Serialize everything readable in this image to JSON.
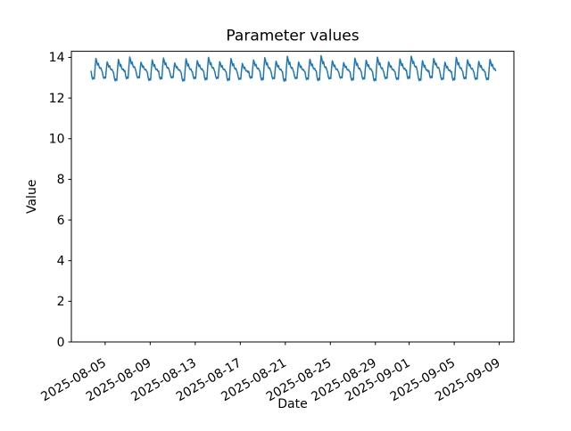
{
  "figure": {
    "background": "#ffffff",
    "text_color": "#000000"
  },
  "chart_data": {
    "type": "line",
    "title": "Parameter values",
    "xlabel": "Date",
    "ylabel": "Value",
    "grid": false,
    "legend": false,
    "line_color": "#1f77b4",
    "line_width": 1.5,
    "ylim": [
      0,
      14.3
    ],
    "y_ticks": [
      0,
      2,
      4,
      6,
      8,
      10,
      12,
      14
    ],
    "y_tick_labels": [
      "0",
      "2",
      "4",
      "6",
      "8",
      "10",
      "12",
      "14"
    ],
    "x_tick_labels": [
      "2025-08-05",
      "2025-08-09",
      "2025-08-13",
      "2025-08-17",
      "2025-08-21",
      "2025-08-25",
      "2025-08-29",
      "2025-09-01",
      "2025-09-05",
      "2025-09-09"
    ],
    "x_tick_day_offsets": [
      0,
      4,
      8,
      12,
      16,
      20,
      24,
      27,
      31,
      35
    ],
    "xlim_days": [
      -3.0,
      36.3
    ],
    "x_tick_rotation_deg": 30,
    "series": {
      "name": "Parameter values",
      "description": "Noisy daily-cycle signal oscillating between about 12.75 and 14.1, spanning 2025-08-03T18:00 to 2025-09-07 (relative day offsets from the 2025-08-05 tick).",
      "start_day_offset": -1.25,
      "num_days": 36,
      "samples_per_day": 14,
      "daily_shape": [
        0.42,
        0.18,
        0.06,
        0.14,
        0.08,
        0.6,
        1.0,
        0.88,
        0.7,
        0.78,
        0.62,
        0.55,
        0.58,
        0.48
      ],
      "daily_peaks": [
        13.95,
        13.78,
        13.9,
        14.02,
        13.76,
        13.88,
        13.97,
        13.72,
        13.93,
        13.84,
        14.0,
        13.79,
        13.94,
        13.7,
        13.87,
        13.99,
        13.81,
        14.05,
        13.77,
        13.91,
        14.08,
        13.83,
        13.74,
        13.96,
        13.86,
        14.01,
        13.78,
        13.92,
        14.06,
        13.84,
        13.94,
        13.76,
        14.0,
        13.88,
        13.8,
        13.9
      ],
      "daily_troughs": [
        12.86,
        12.91,
        12.78,
        12.88,
        12.93,
        12.8,
        12.86,
        12.94,
        12.76,
        12.89,
        12.82,
        12.9,
        12.79,
        12.86,
        12.92,
        12.81,
        12.88,
        12.75,
        12.9,
        12.84,
        12.78,
        12.88,
        12.93,
        12.8,
        12.86,
        12.77,
        12.9,
        12.84,
        12.88,
        12.79,
        12.92,
        12.85,
        12.8,
        12.88,
        12.86,
        12.83
      ]
    }
  }
}
